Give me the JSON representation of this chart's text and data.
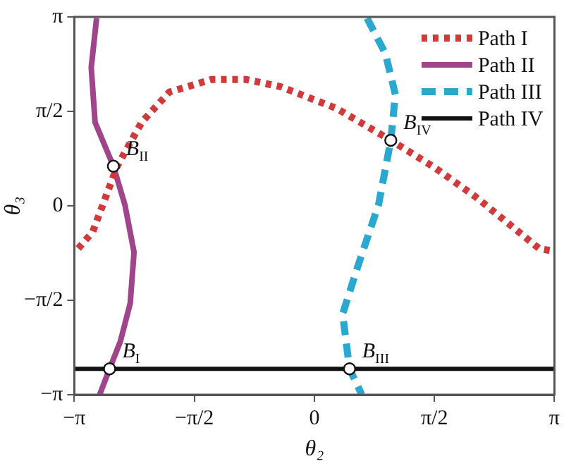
{
  "chart_data": {
    "type": "line",
    "xlabel": "θ₂",
    "ylabel": "θ₃",
    "xlim": [
      -3.1416,
      3.1416
    ],
    "ylim": [
      -3.1416,
      3.1416
    ],
    "xticks": [
      {
        "value": -3.1416,
        "label": "−π"
      },
      {
        "value": -1.5708,
        "label": "−π/2"
      },
      {
        "value": 0,
        "label": "0"
      },
      {
        "value": 1.5708,
        "label": "π/2"
      },
      {
        "value": 3.1416,
        "label": "π"
      }
    ],
    "yticks": [
      {
        "value": -3.1416,
        "label": "−π"
      },
      {
        "value": -1.5708,
        "label": "−π/2"
      },
      {
        "value": 0,
        "label": "0"
      },
      {
        "value": 1.5708,
        "label": "π/2"
      },
      {
        "value": 3.1416,
        "label": "π"
      }
    ],
    "grid": false,
    "legend": "top right",
    "marker": "none",
    "series": [
      {
        "name": "Path I",
        "color": "#d03a3a",
        "line_style": "dotted",
        "x": [
          -3.09,
          -2.9,
          -2.58,
          -2.26,
          -1.9,
          -1.35,
          -0.89,
          -0.44,
          0.29,
          1.0,
          1.57,
          2.12,
          2.67,
          2.94,
          3.12
        ],
        "values": [
          -0.71,
          -0.43,
          0.66,
          1.39,
          1.89,
          2.1,
          2.1,
          1.98,
          1.62,
          1.09,
          0.64,
          0.14,
          -0.43,
          -0.71,
          -0.75
        ]
      },
      {
        "name": "Path II",
        "color": "#a0448c",
        "line_style": "solid",
        "x": [
          -2.85,
          -2.92,
          -2.87,
          -2.63,
          -2.48,
          -2.36,
          -2.41,
          -2.54,
          -2.68,
          -2.81
        ],
        "values": [
          3.12,
          2.3,
          1.39,
          0.66,
          0.02,
          -0.77,
          -1.62,
          -2.26,
          -2.71,
          -3.14
        ]
      },
      {
        "name": "Path III",
        "color": "#2aa8d0",
        "line_style": "dashed",
        "x": [
          0.69,
          0.93,
          1.06,
          1.0,
          0.84,
          0.57,
          0.37,
          0.46,
          0.62
        ],
        "values": [
          3.12,
          2.53,
          1.85,
          1.09,
          0.02,
          -1.0,
          -1.8,
          -2.71,
          -3.14
        ]
      },
      {
        "name": "Path IV",
        "color": "#111111",
        "line_style": "solid",
        "x": [
          -3.1416,
          3.1416
        ],
        "values": [
          -2.71,
          -2.71
        ]
      }
    ],
    "annotations": [
      {
        "text": "B$_{I}$",
        "x": -2.68,
        "y": -2.71
      },
      {
        "text": "B$_{II}$",
        "x": -2.63,
        "y": 0.66
      },
      {
        "text": "B$_{III}$",
        "x": 0.46,
        "y": -2.71
      },
      {
        "text": "B$_{IV}$",
        "x": 1.0,
        "y": 1.09
      }
    ]
  }
}
